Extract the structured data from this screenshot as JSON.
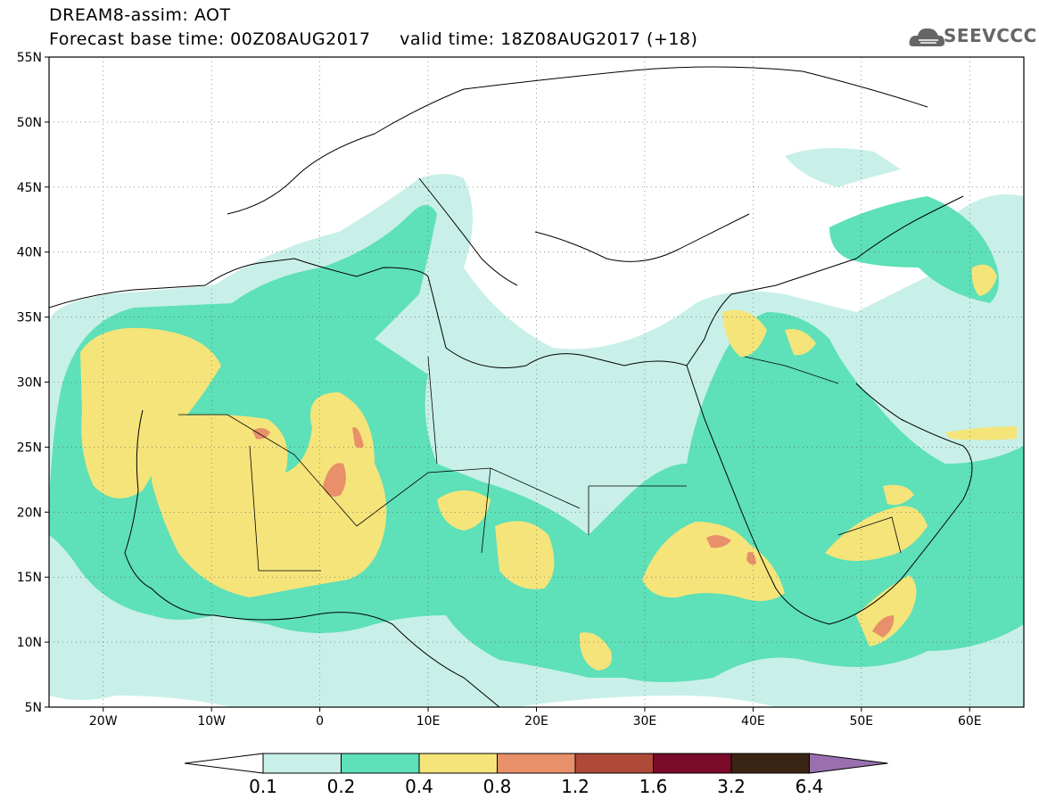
{
  "header": {
    "line1": "DREAM8-assim: AOT",
    "line2": "Forecast base time: 00Z08AUG2017     valid time: 18Z08AUG2017 (+18)",
    "logo_text": "SEEVCCC"
  },
  "map": {
    "lat_labels": [
      "55N",
      "50N",
      "45N",
      "40N",
      "35N",
      "30N",
      "25N",
      "20N",
      "15N",
      "10N",
      "5N"
    ],
    "lon_labels": [
      "20W",
      "10W",
      "0",
      "10E",
      "20E",
      "30E",
      "40E",
      "50E",
      "60E"
    ],
    "extent": {
      "lon": [
        -25,
        65
      ],
      "lat": [
        5,
        55
      ]
    }
  },
  "legend": {
    "levels": [
      "0.1",
      "0.2",
      "0.4",
      "0.8",
      "1.2",
      "1.6",
      "3.2",
      "6.4"
    ],
    "colors": [
      "#ffffff",
      "#c8f0e8",
      "#5ee0b8",
      "#f5e47a",
      "#e8906a",
      "#b04a38",
      "#7a0a2a",
      "#3a2414",
      "#9a6fb0"
    ]
  }
}
